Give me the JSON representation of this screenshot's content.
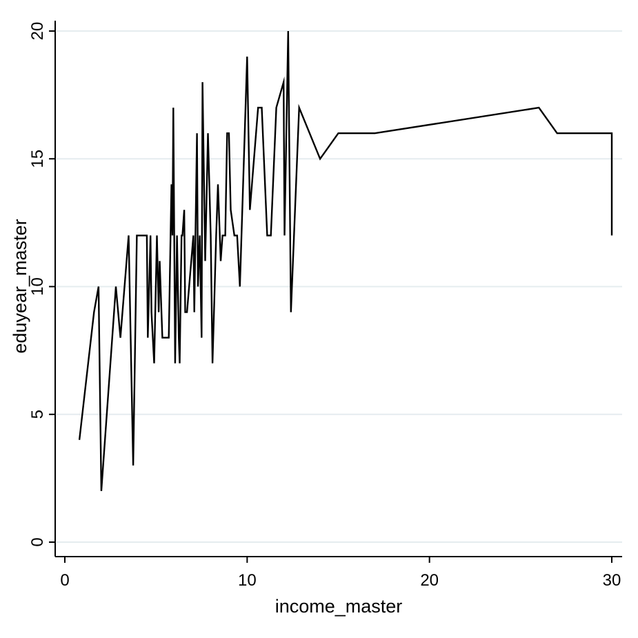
{
  "chart_data": {
    "type": "line",
    "title": "",
    "xlabel": "income_master",
    "ylabel": "eduyear_master",
    "xlim": [
      0,
      30
    ],
    "ylim": [
      0,
      20
    ],
    "xticks": [
      0,
      10,
      20,
      30
    ],
    "yticks": [
      0,
      5,
      10,
      15,
      20
    ],
    "xtick_labels": [
      "0",
      "10",
      "20",
      "30"
    ],
    "ytick_labels": [
      "0",
      "5",
      "10",
      "15",
      "20"
    ],
    "grid": "horizontal",
    "legend": "none",
    "line_color": "#000000",
    "series": [
      {
        "x": [
          0.8,
          1.6,
          1.85,
          2.0,
          2.8,
          3.05,
          3.5,
          3.75,
          3.95,
          4.0,
          4.5,
          4.55,
          4.7,
          4.75,
          4.9,
          5.05,
          5.15,
          5.2,
          5.35,
          5.4,
          5.7,
          5.85,
          5.9,
          5.95,
          6.05,
          6.15,
          6.25,
          6.3,
          6.4,
          6.45,
          6.55,
          6.6,
          6.7,
          7.05,
          7.1,
          7.25,
          7.3,
          7.4,
          7.5,
          7.55,
          7.7,
          7.85,
          8.0,
          8.1,
          8.3,
          8.4,
          8.55,
          8.65,
          8.8,
          8.9,
          9.0,
          9.1,
          9.3,
          9.45,
          9.6,
          10.0,
          10.15,
          10.6,
          10.8,
          11.1,
          11.3,
          11.6,
          12.0,
          12.05,
          12.25,
          12.4,
          12.85,
          14.0,
          15.0,
          17.0,
          26.0,
          27.0,
          30.0,
          30.0
        ],
        "y": [
          4,
          9,
          10,
          2,
          10,
          8,
          12,
          3,
          12,
          12,
          12,
          8,
          12,
          9,
          7,
          12,
          9,
          11,
          8,
          8,
          8,
          14,
          12,
          17,
          7,
          12,
          8,
          7,
          12,
          12,
          13,
          9,
          9,
          12,
          9,
          16,
          10,
          12,
          8,
          18,
          11,
          16,
          12,
          7,
          12,
          14,
          11,
          12,
          12,
          16,
          16,
          13,
          12,
          12,
          10,
          19,
          13,
          17,
          17,
          12,
          12,
          17,
          18,
          12,
          20,
          9,
          17,
          15,
          16,
          16,
          17,
          16,
          16,
          12
        ]
      }
    ]
  }
}
